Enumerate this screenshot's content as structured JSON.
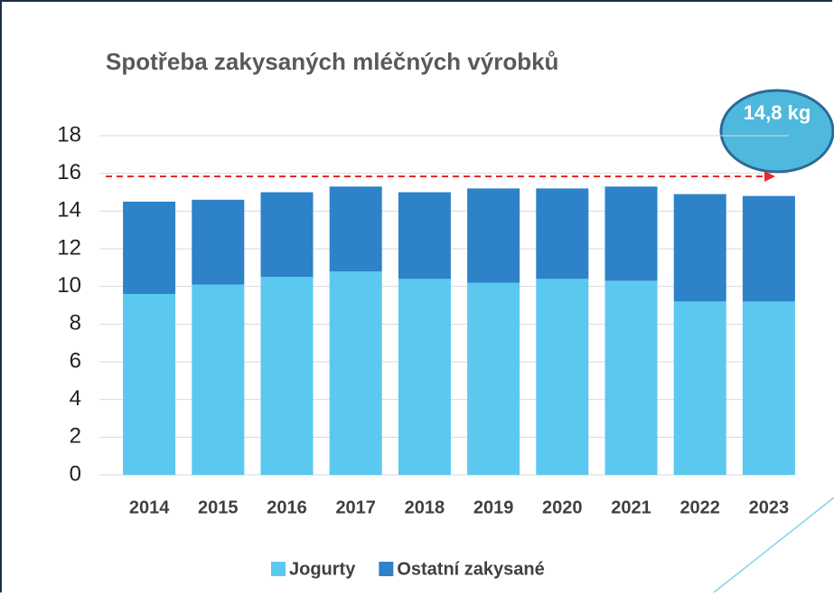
{
  "chart_data": {
    "type": "stacked_bar",
    "title": "Spotřeba zakysaných mléčných výrobků",
    "annotation": "14,8 kg",
    "categories": [
      "2014",
      "2015",
      "2016",
      "2017",
      "2018",
      "2019",
      "2020",
      "2021",
      "2022",
      "2023"
    ],
    "series": [
      {
        "name": "Jogurty",
        "color": "#5bc8ef",
        "values": [
          9.6,
          10.1,
          10.5,
          10.8,
          10.4,
          10.2,
          10.4,
          10.3,
          9.2,
          9.2
        ]
      },
      {
        "name": "Ostatní zakysané",
        "color": "#2e82c8",
        "values": [
          4.9,
          4.5,
          4.5,
          4.5,
          4.6,
          5.0,
          4.8,
          5.0,
          5.7,
          5.6
        ]
      }
    ],
    "ylim": [
      0,
      18
    ],
    "yticks": [
      0,
      2,
      4,
      6,
      8,
      10,
      12,
      14,
      16,
      18
    ],
    "grid": true,
    "legend": "bottom"
  }
}
